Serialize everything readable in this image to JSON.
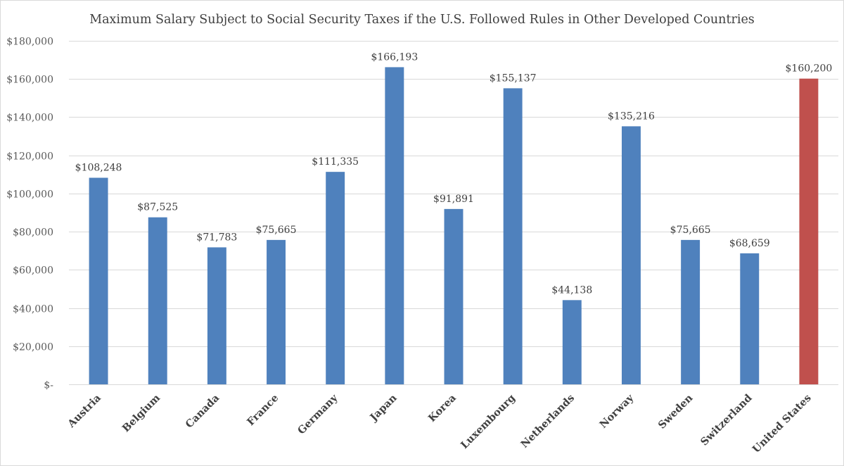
{
  "chart_data": {
    "type": "bar",
    "title": "Maximum Salary Subject to Social Security Taxes if the U.S. Followed Rules in Other Developed Countries",
    "xlabel": "",
    "ylabel": "",
    "ylim": [
      0,
      180000
    ],
    "yticks": [
      0,
      20000,
      40000,
      60000,
      80000,
      100000,
      120000,
      140000,
      160000,
      180000
    ],
    "ytick_labels": [
      "$-",
      "$20,000",
      "$40,000",
      "$60,000",
      "$80,000",
      "$100,000",
      "$120,000",
      "$140,000",
      "$160,000",
      "$180,000"
    ],
    "grid": true,
    "categories": [
      "Austria",
      "Belgium",
      "Canada",
      "France",
      "Germany",
      "Japan",
      "Korea",
      "Luxembourg",
      "Netherlands",
      "Norway",
      "Sweden",
      "Switzerland",
      "United States"
    ],
    "values": [
      108248,
      87525,
      71783,
      75665,
      111335,
      166193,
      91891,
      155137,
      44138,
      135216,
      75665,
      68659,
      160200
    ],
    "value_labels": [
      "$108,248",
      "$87,525",
      "$71,783",
      "$75,665",
      "$111,335",
      "$166,193",
      "$91,891",
      "$155,137",
      "$44,138",
      "$135,216",
      "$75,665",
      "$68,659",
      "$160,200"
    ],
    "colors": [
      "#4f81bd",
      "#4f81bd",
      "#4f81bd",
      "#4f81bd",
      "#4f81bd",
      "#4f81bd",
      "#4f81bd",
      "#4f81bd",
      "#4f81bd",
      "#4f81bd",
      "#4f81bd",
      "#4f81bd",
      "#c0504d"
    ],
    "gridline_color": "#d9d9d9",
    "axis_color": "#d9d9d9"
  }
}
